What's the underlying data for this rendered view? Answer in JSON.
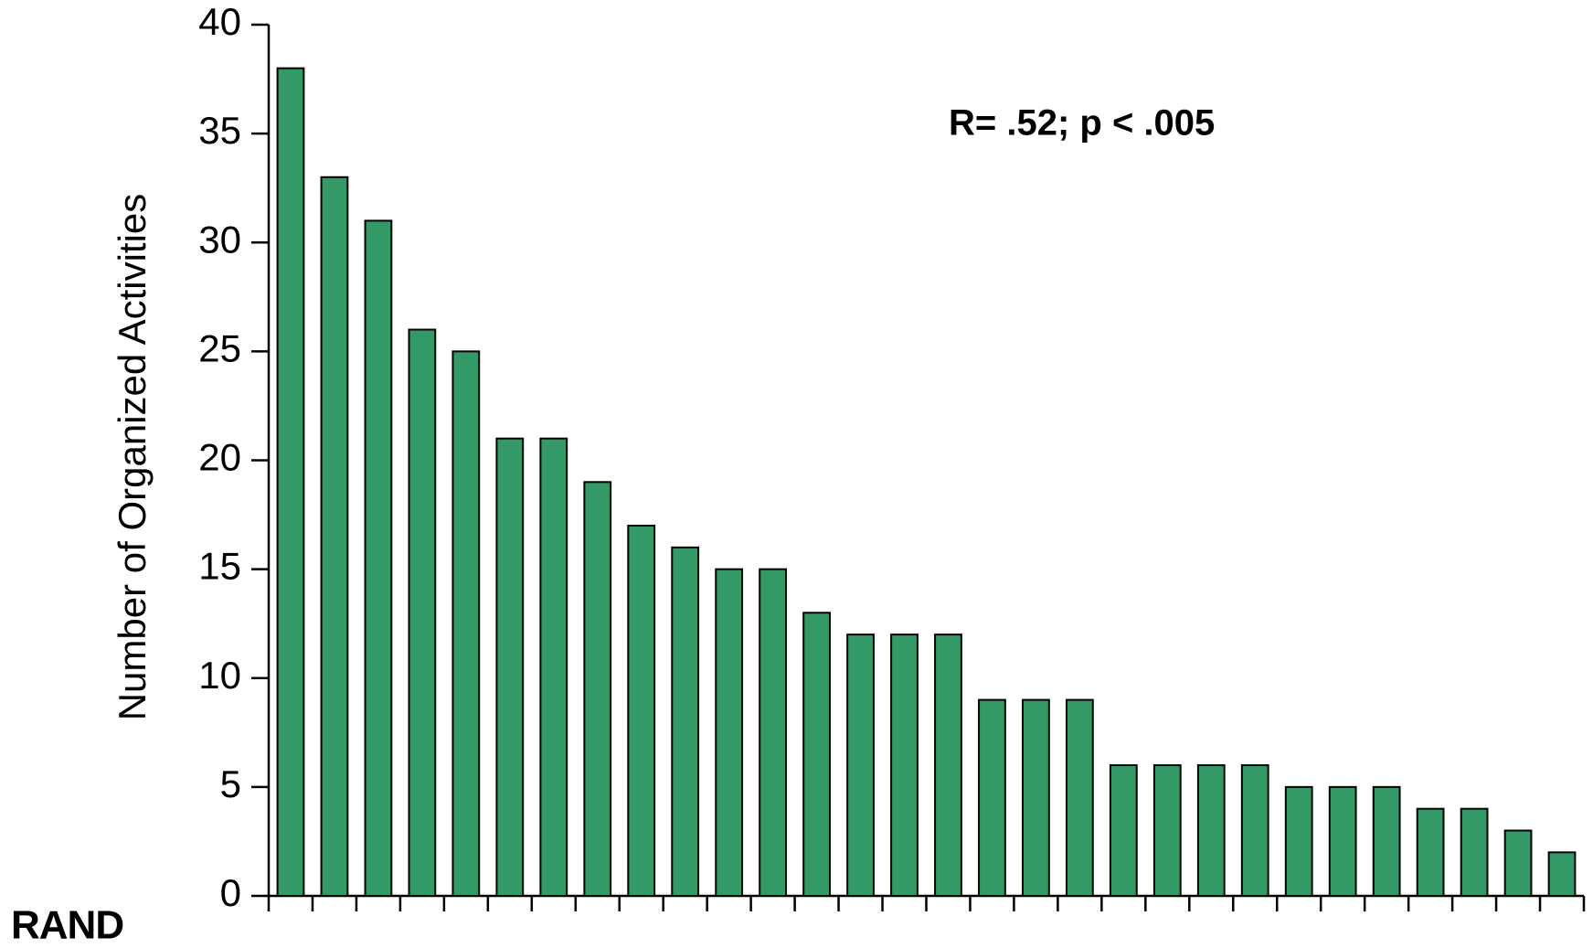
{
  "chart_data": {
    "type": "bar",
    "y_axis_label": "Number of Organized Activities",
    "annotation": "R= .52;  p < .005",
    "logo": "RAND",
    "categories": [
      null,
      null,
      null,
      null,
      null,
      null,
      null,
      null,
      null,
      null,
      null,
      null,
      null,
      null,
      null,
      null,
      null,
      null,
      null,
      null,
      null,
      null,
      null,
      null,
      null,
      null,
      null,
      null,
      null,
      null
    ],
    "values": [
      38,
      33,
      31,
      26,
      25,
      21,
      21,
      19,
      17,
      16,
      15,
      15,
      13,
      12,
      12,
      12,
      9,
      9,
      9,
      6,
      6,
      6,
      6,
      5,
      5,
      5,
      4,
      4,
      3,
      2
    ],
    "color": "#339966",
    "ylim": [
      0,
      40
    ],
    "yticks": [
      0,
      5,
      10,
      15,
      20,
      25,
      30,
      35,
      40
    ],
    "grid": false
  }
}
